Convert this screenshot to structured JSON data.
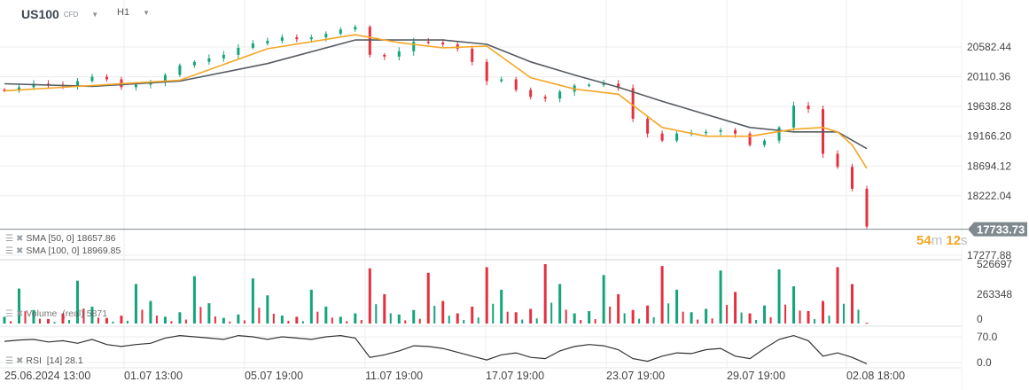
{
  "header": {
    "symbol": "US100",
    "symbol_type": "CFD",
    "timeframe": "H1"
  },
  "indicators": {
    "sma50": {
      "label": "SMA [50, 0]",
      "value": "18657.86",
      "color": "#f5a623"
    },
    "sma100": {
      "label": "SMA [100, 0]",
      "value": "18969.85",
      "color": "#555b61"
    },
    "volume": {
      "label": "Volume  (real)",
      "value": "5871"
    },
    "rsi": {
      "label": "RSI  [14]",
      "value": "28.1"
    }
  },
  "current_price": {
    "value": "17733.73",
    "countdown_min": "54",
    "countdown_min_unit": "m",
    "countdown_sec": "12",
    "countdown_sec_unit": "s"
  },
  "colors": {
    "up": "#13a47a",
    "down": "#e5303e",
    "grid": "#ececec",
    "price_line": "#7f8a8f"
  },
  "chart_data": {
    "type": "candlestick",
    "price_axis": {
      "ticks": [
        "20582.44",
        "20110.36",
        "19638.28",
        "19166.20",
        "18694.12",
        "18222.04",
        "17277.88"
      ],
      "range": [
        17277.88,
        20582.44
      ]
    },
    "time_axis": {
      "ticks": [
        "25.06.2024  13:00",
        "01.07  13:00",
        "05.07  19:00",
        "11.07  19:00",
        "17.07  19:00",
        "23.07  19:00",
        "29.07  19:00",
        "02.08  18:00"
      ]
    },
    "closes": [
      19888,
      19944,
      19999,
      19985,
      19971,
      20041,
      20110,
      20069,
      19944,
      19985,
      20027,
      20138,
      20291,
      20346,
      20402,
      20458,
      20569,
      20638,
      20680,
      20735,
      20707,
      20735,
      20791,
      20860,
      20902,
      20458,
      20430,
      20513,
      20666,
      20652,
      20624,
      20555,
      20346,
      20041,
      20069,
      19902,
      19791,
      19763,
      19874,
      19971,
      19985,
      19999,
      19930,
      19444,
      19208,
      19097,
      19208,
      19222,
      19236,
      19263,
      19208,
      19027,
      19097,
      19305,
      19652,
      19597,
      18889,
      18680,
      18333,
      17733.73
    ],
    "sma50": {
      "index": [
        0,
        6,
        12,
        18,
        24,
        27,
        30,
        33,
        36,
        39,
        42,
        45,
        48,
        51,
        54,
        56,
        57,
        58,
        59
      ],
      "values": [
        19888,
        19971,
        20055,
        20555,
        20777,
        20652,
        20569,
        20597,
        20096,
        19916,
        19833,
        19305,
        19166,
        19166,
        19277,
        19305,
        19236,
        19027,
        18657.86
      ]
    },
    "sma100": {
      "index": [
        0,
        6,
        12,
        18,
        24,
        30,
        33,
        36,
        39,
        42,
        45,
        48,
        51,
        54,
        57,
        59
      ],
      "values": [
        19999,
        19958,
        20041,
        20319,
        20693,
        20693,
        20624,
        20346,
        20138,
        19944,
        19722,
        19513,
        19305,
        19236,
        19236,
        18969.85
      ]
    },
    "volume": {
      "axis_ticks": [
        "526697",
        "263348",
        "0"
      ],
      "max": 526697,
      "values": [
        60000,
        310000,
        120000,
        40000,
        90000,
        380000,
        150000,
        50000,
        70000,
        350000,
        200000,
        60000,
        100000,
        420000,
        180000,
        50000,
        80000,
        400000,
        250000,
        70000,
        60000,
        300000,
        150000,
        60000,
        90000,
        490000,
        260000,
        80000,
        120000,
        450000,
        200000,
        90000,
        150000,
        500000,
        300000,
        100000,
        130000,
        526697,
        350000,
        90000,
        110000,
        430000,
        260000,
        120000,
        160000,
        510000,
        300000,
        100000,
        130000,
        470000,
        280000,
        90000,
        160000,
        480000,
        330000,
        110000,
        200000,
        500000,
        350000,
        5871
      ]
    },
    "rsi": {
      "axis_ticks": [
        "70.0",
        "0.0"
      ],
      "values": [
        63,
        65,
        66,
        62,
        64,
        60,
        66,
        58,
        55,
        58,
        60,
        68,
        72,
        70,
        68,
        66,
        72,
        70,
        66,
        70,
        68,
        66,
        70,
        72,
        68,
        38,
        42,
        48,
        56,
        55,
        52,
        46,
        40,
        34,
        42,
        45,
        38,
        36,
        48,
        55,
        58,
        56,
        50,
        36,
        32,
        40,
        45,
        44,
        50,
        52,
        40,
        36,
        52,
        66,
        72,
        64,
        40,
        45,
        38,
        28.1
      ]
    }
  }
}
